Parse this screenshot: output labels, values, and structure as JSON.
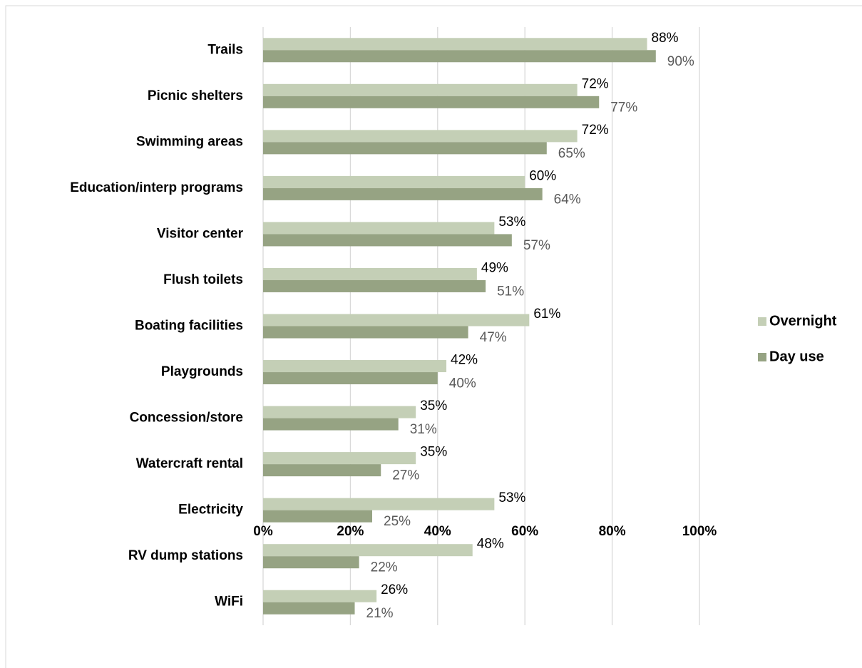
{
  "chart_data": {
    "type": "bar",
    "orientation": "horizontal",
    "categories": [
      "Trails",
      "Picnic shelters",
      "Swimming areas",
      "Education/interp programs",
      "Visitor center",
      "Flush toilets",
      "Boating facilities",
      "Playgrounds",
      "Concession/store",
      "Watercraft rental",
      "Electricity",
      "RV dump stations",
      "WiFi"
    ],
    "series": [
      {
        "name": "Overnight",
        "color": "#c4cfb6",
        "label_color": "#000000",
        "values": [
          88,
          72,
          72,
          60,
          53,
          49,
          61,
          42,
          35,
          35,
          53,
          48,
          26
        ],
        "value_labels": [
          "88%",
          "72%",
          "72%",
          "60%",
          "53%",
          "49%",
          "61%",
          "42%",
          "35%",
          "35%",
          "53%",
          "48%",
          "26%"
        ]
      },
      {
        "name": "Day use",
        "color": "#96a383",
        "label_color": "#595959",
        "values": [
          90,
          77,
          65,
          64,
          57,
          51,
          47,
          40,
          31,
          27,
          25,
          22,
          21
        ],
        "value_labels": [
          "90%",
          "77%",
          "65%",
          "64%",
          "57%",
          "51%",
          "47%",
          "40%",
          "31%",
          "27%",
          "25%",
          "22%",
          "21%"
        ]
      }
    ],
    "xlim": [
      0,
      100
    ],
    "xticks": [
      {
        "value": 0,
        "label": "0%"
      },
      {
        "value": 20,
        "label": "20%"
      },
      {
        "value": 40,
        "label": "40%"
      },
      {
        "value": 60,
        "label": "60%"
      },
      {
        "value": 80,
        "label": "80%"
      },
      {
        "value": 100,
        "label": "100%"
      }
    ],
    "grid": true,
    "legend": "right"
  }
}
